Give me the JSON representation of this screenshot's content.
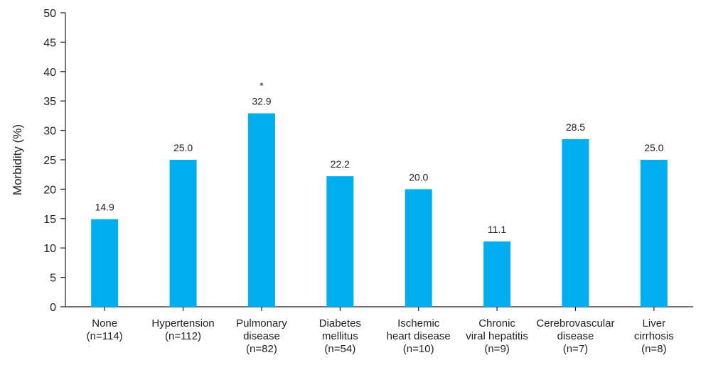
{
  "chart_data": {
    "type": "bar",
    "ylabel": "Morbidity (%)",
    "xlabel": "",
    "ylim": [
      0,
      50
    ],
    "yticks": [
      0,
      5,
      10,
      15,
      20,
      25,
      30,
      35,
      40,
      45,
      50
    ],
    "bar_color": "#00aeef",
    "categories": [
      [
        "None",
        "(n=114)"
      ],
      [
        "Hypertension",
        "(n=112)"
      ],
      [
        "Pulmonary",
        "disease",
        "(n=82)"
      ],
      [
        "Diabetes",
        "mellitus",
        "(n=54)"
      ],
      [
        "Ischemic",
        "heart disease",
        "(n=10)"
      ],
      [
        "Chronic",
        "viral hepatitis",
        "(n=9)"
      ],
      [
        "Cerebrovascular",
        "disease",
        "(n=7)"
      ],
      [
        "Liver",
        "cirrhosis",
        "(n=8)"
      ]
    ],
    "values": [
      14.9,
      25.0,
      32.9,
      22.2,
      20.0,
      11.1,
      28.5,
      25.0
    ],
    "value_labels": [
      "14.9",
      "25.0",
      "32.9",
      "22.2",
      "20.0",
      "11.1",
      "28.5",
      "25.0"
    ],
    "annotations": [
      {
        "category_index": 2,
        "text": "*"
      }
    ]
  }
}
